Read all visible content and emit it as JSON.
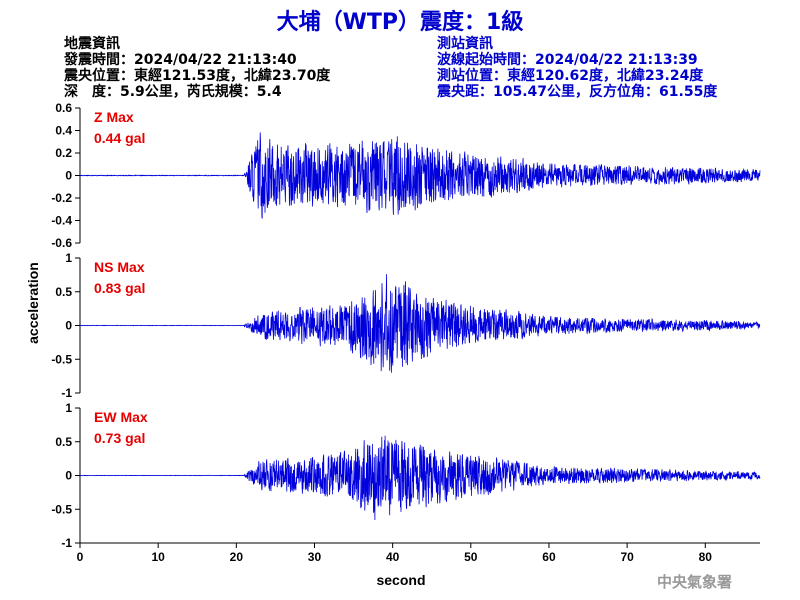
{
  "title": "大埔（WTP）震度：1級",
  "quake_info": {
    "heading": "地震資訊",
    "origin_time": "發震時間：2024/04/22 21:13:40",
    "epicenter": "震央位置：東經121.53度，北緯23.70度",
    "depth_magnitude": "深　度：5.9公里，芮氏規模：5.4"
  },
  "station_info": {
    "heading": "測站資訊",
    "wave_start": "波線起始時間：2024/04/22 21:13:39",
    "location": "測站位置：東經120.62度，北緯23.24度",
    "distance_azimuth": "震央距：105.47公里，反方位角：61.55度"
  },
  "credit": "中央氣象署",
  "colors": {
    "title": "#0000cc",
    "trace": "#0000dd",
    "max_label": "#e60000"
  },
  "chart_data": [
    {
      "type": "line",
      "name_label": "Z Max",
      "max_label": "0.44 gal",
      "max": 0.44,
      "ylim": [
        -0.6,
        0.6
      ],
      "yticks": [
        -0.6,
        -0.4,
        -0.2,
        0,
        0.2,
        0.4,
        0.6
      ],
      "ytick_labels": [
        "-0.6",
        "-0.4",
        "-0.2",
        "0",
        "0.2",
        "0.4",
        "0.6"
      ],
      "onset": 21,
      "peaks": [
        [
          23,
          0.44
        ],
        [
          25,
          0.33
        ],
        [
          31,
          0.3
        ],
        [
          40,
          0.38
        ],
        [
          41,
          0.42
        ],
        [
          44,
          0.3
        ],
        [
          52,
          0.22
        ],
        [
          60,
          0.12
        ],
        [
          87,
          0.06
        ]
      ],
      "seed": 17
    },
    {
      "type": "line",
      "name_label": "NS Max",
      "max_label": "0.83 gal",
      "max": 0.83,
      "ylim": [
        -1,
        1
      ],
      "yticks": [
        -1,
        -0.5,
        0,
        0.5,
        1
      ],
      "ytick_labels": [
        "-1",
        "-0.5",
        "0",
        "0.5",
        "1"
      ],
      "onset": 21,
      "peaks": [
        [
          23,
          0.2
        ],
        [
          28,
          0.3
        ],
        [
          33,
          0.35
        ],
        [
          36,
          0.5
        ],
        [
          39,
          0.83
        ],
        [
          42,
          0.7
        ],
        [
          45,
          0.45
        ],
        [
          52,
          0.3
        ],
        [
          60,
          0.15
        ],
        [
          87,
          0.06
        ]
      ],
      "seed": 29
    },
    {
      "type": "line",
      "name_label": "EW Max",
      "max_label": "0.73 gal",
      "max": 0.73,
      "ylim": [
        -1,
        1
      ],
      "yticks": [
        -1,
        -0.5,
        0,
        0.5,
        1
      ],
      "ytick_labels": [
        "-1",
        "-0.5",
        "0",
        "0.5",
        "1"
      ],
      "onset": 21,
      "peaks": [
        [
          23,
          0.25
        ],
        [
          29,
          0.3
        ],
        [
          35,
          0.45
        ],
        [
          38,
          0.73
        ],
        [
          41,
          0.6
        ],
        [
          44,
          0.5
        ],
        [
          48,
          0.4
        ],
        [
          53,
          0.3
        ],
        [
          60,
          0.15
        ],
        [
          87,
          0.06
        ]
      ],
      "seed": 43
    }
  ],
  "x_axis": {
    "label": "second",
    "xlim": [
      0,
      87
    ],
    "ticks": [
      0,
      10,
      20,
      30,
      40,
      50,
      60,
      70,
      80
    ],
    "tick_labels": [
      "0",
      "10",
      "20",
      "30",
      "40",
      "50",
      "60",
      "70",
      "80"
    ]
  },
  "y_axis_label": "acceleration"
}
